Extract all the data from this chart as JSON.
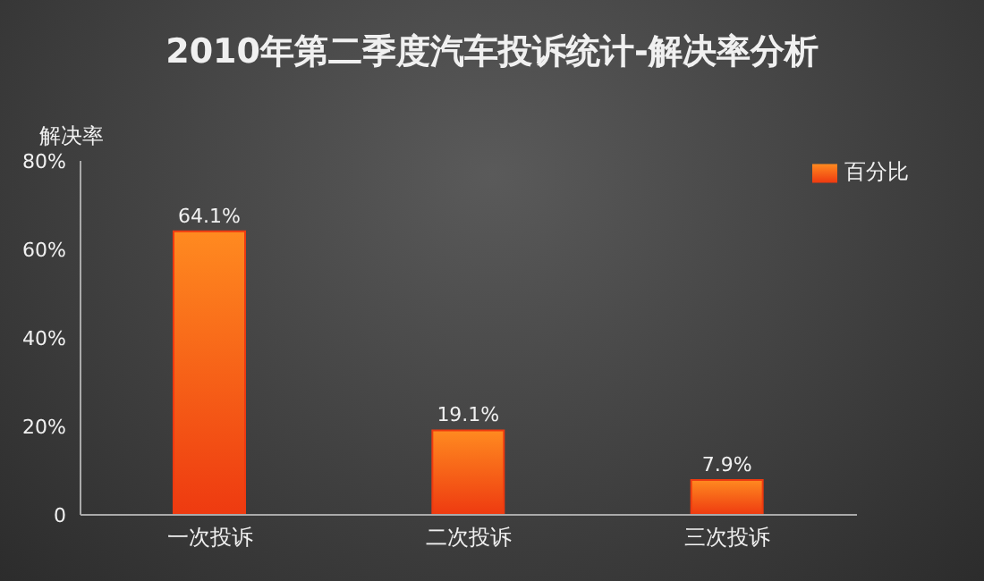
{
  "chart_data": {
    "type": "bar",
    "title": "2010年第二季度汽车投诉统计-解决率分析",
    "ylabel": "解决率",
    "categories": [
      "一次投诉",
      "二次投诉",
      "三次投诉"
    ],
    "series": [
      {
        "name": "百分比",
        "color": "#ee3a10",
        "values": [
          64.1,
          19.1,
          7.9
        ],
        "value_labels": [
          "64.1%",
          "19.1%",
          "7.9%"
        ]
      }
    ],
    "ylim": [
      0,
      80
    ],
    "yticks": [
      0,
      {
        "value": 20,
        "label": "20%"
      },
      {
        "value": 40,
        "label": "40%"
      },
      {
        "value": 60,
        "label": "60%"
      },
      {
        "value": 80,
        "label": "80%"
      }
    ],
    "grid": false,
    "legend": "top right"
  }
}
